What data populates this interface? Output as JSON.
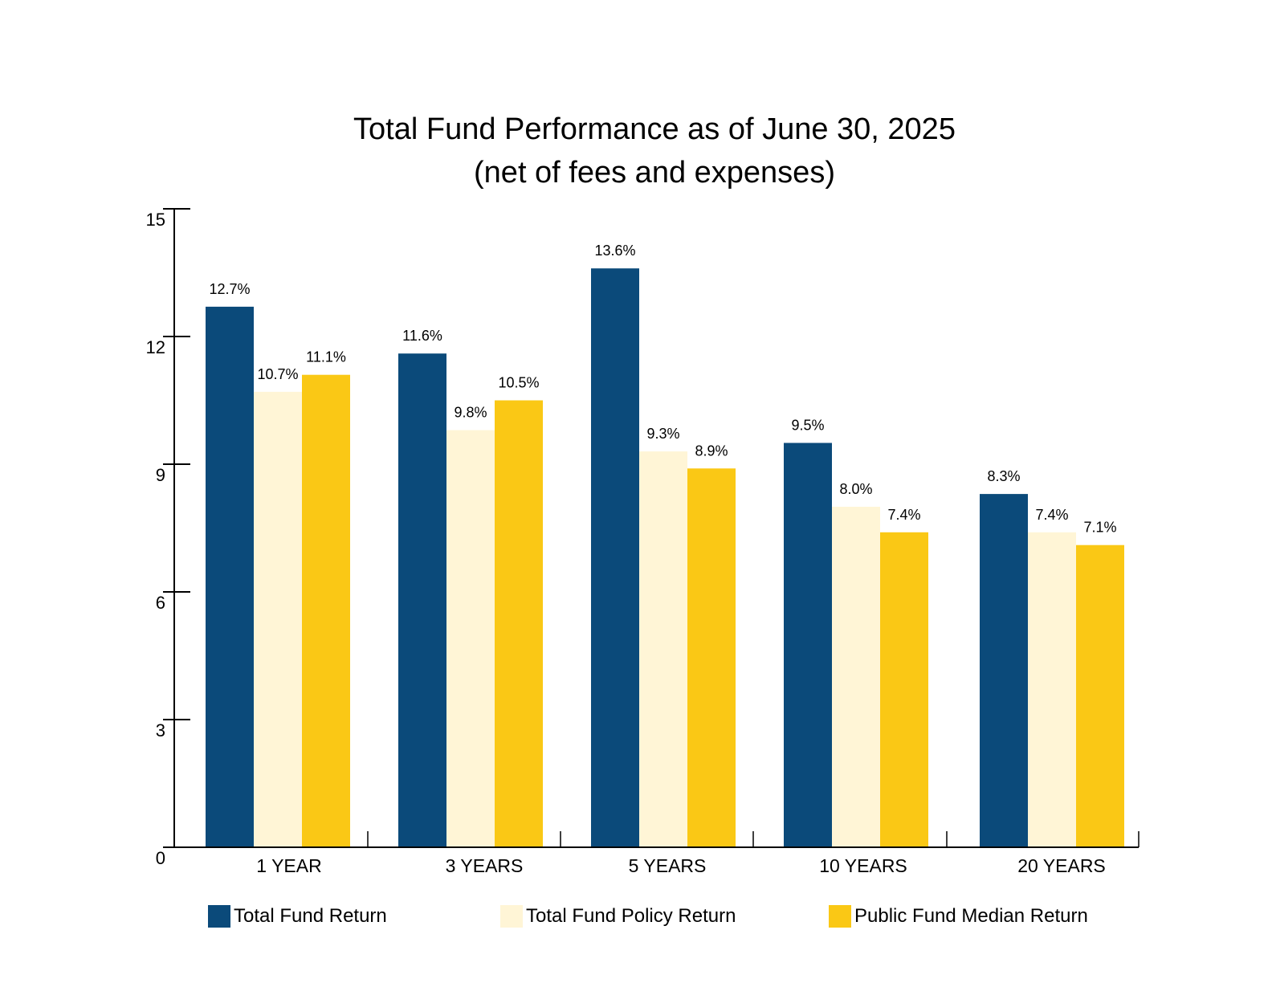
{
  "chart_data": {
    "type": "bar",
    "title": "Total Fund Performance as of June 30, 2025",
    "subtitle": "(net of fees and expenses)",
    "xlabel": "",
    "ylabel": "",
    "ylim": [
      0,
      15
    ],
    "yticks": [
      0,
      3,
      6,
      9,
      12,
      15
    ],
    "grid": false,
    "legend_position": "bottom",
    "categories": [
      "1 YEAR",
      "3 YEARS",
      "5 YEARS",
      "10 YEARS",
      "20 YEARS"
    ],
    "series": [
      {
        "name": "Total Fund Return",
        "color": "#0B4A7A",
        "values": [
          12.7,
          11.6,
          13.6,
          9.5,
          8.3
        ],
        "labels": [
          "12.7%",
          "11.6%",
          "13.6%",
          "9.5%",
          "8.3%"
        ]
      },
      {
        "name": "Total Fund Policy Return",
        "color": "#FFF5D6",
        "values": [
          10.7,
          9.8,
          9.3,
          8.0,
          7.4
        ],
        "labels": [
          "10.7%",
          "9.8%",
          "9.3%",
          "8.0%",
          "7.4%"
        ]
      },
      {
        "name": "Public Fund Median Return",
        "color": "#FAC815",
        "values": [
          11.1,
          10.5,
          8.9,
          7.4,
          7.1
        ],
        "labels": [
          "11.1%",
          "10.5%",
          "8.9%",
          "7.4%",
          "7.1%"
        ]
      }
    ]
  }
}
